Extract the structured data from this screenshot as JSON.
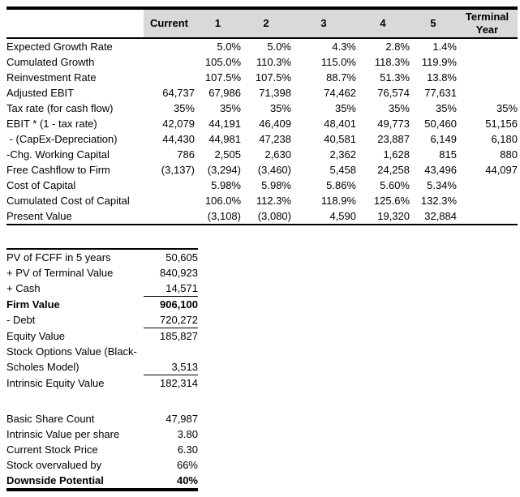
{
  "colors": {
    "header_bg": "#d9d9d9",
    "border": "#000000",
    "text": "#000000",
    "background": "#ffffff"
  },
  "dcf_table": {
    "columns": [
      "",
      "Current",
      "1",
      "2",
      "3",
      "4",
      "5",
      "Terminal Year"
    ],
    "rows": [
      {
        "cells": [
          "Expected Growth Rate",
          "",
          "5.0%",
          "5.0%",
          "4.3%",
          "2.8%",
          "1.4%",
          ""
        ]
      },
      {
        "cells": [
          "Cumulated Growth",
          "",
          "105.0%",
          "110.3%",
          "115.0%",
          "118.3%",
          "119.9%",
          ""
        ]
      },
      {
        "cells": [
          "Reinvestment Rate",
          "",
          "107.5%",
          "107.5%",
          "88.7%",
          "51.3%",
          "13.8%",
          ""
        ]
      },
      {
        "cells": [
          "Adjusted EBIT",
          "64,737",
          "67,986",
          "71,398",
          "74,462",
          "76,574",
          "77,631",
          ""
        ]
      },
      {
        "cells": [
          "Tax rate (for cash flow)",
          "35%",
          "35%",
          "35%",
          "35%",
          "35%",
          "35%",
          "35%"
        ]
      },
      {
        "cells": [
          "EBIT * (1 - tax rate)",
          "42,079",
          "44,191",
          "46,409",
          "48,401",
          "49,773",
          "50,460",
          "51,156"
        ]
      },
      {
        "cells": [
          " - (CapEx-Depreciation)",
          "44,430",
          "44,981",
          "47,238",
          "40,581",
          "23,887",
          "6,149",
          "6,180"
        ]
      },
      {
        "cells": [
          "-Chg. Working Capital",
          "786",
          "2,505",
          "2,630",
          "2,362",
          "1,628",
          "815",
          "880"
        ]
      },
      {
        "cells": [
          "Free Cashflow to Firm",
          "(3,137)",
          "(3,294)",
          "(3,460)",
          "5,458",
          "24,258",
          "43,496",
          "44,097"
        ]
      },
      {
        "cells": [
          "Cost of Capital",
          "",
          "5.98%",
          "5.98%",
          "5.86%",
          "5.60%",
          "5.34%",
          ""
        ]
      },
      {
        "cells": [
          "Cumulated Cost of Capital",
          "",
          "106.0%",
          "112.3%",
          "118.9%",
          "125.6%",
          "132.3%",
          ""
        ]
      },
      {
        "cells": [
          "Present Value",
          "",
          "(3,108)",
          "(3,080)",
          "4,590",
          "19,320",
          "32,884",
          ""
        ]
      }
    ]
  },
  "valuation_summary": {
    "rows": [
      {
        "label": "PV of FCFF in 5 years",
        "value": "50,605",
        "bold": false,
        "underline": false
      },
      {
        "label": "+ PV of Terminal Value",
        "value": "840,923",
        "bold": false,
        "underline": false
      },
      {
        "label": "+ Cash",
        "value": "14,571",
        "bold": false,
        "underline": true
      },
      {
        "label": "Firm Value",
        "value": "906,100",
        "bold": true,
        "underline": false
      },
      {
        "label": "- Debt",
        "value": "720,272",
        "bold": false,
        "underline": true
      },
      {
        "label": "Equity Value",
        "value": "185,827",
        "bold": false,
        "underline": false
      },
      {
        "label": "Stock Options Value (Black-",
        "value": "",
        "bold": false,
        "underline": false
      },
      {
        "label": "Scholes Model)",
        "value": "3,513",
        "bold": false,
        "underline": true
      },
      {
        "label": "Intrinsic Equity Value",
        "value": "182,314",
        "bold": false,
        "underline": false
      }
    ]
  },
  "share_metrics": {
    "rows": [
      {
        "label": "Basic Share Count",
        "value": "47,987",
        "bold": false,
        "underline": false
      },
      {
        "label": "Intrinsic Value per share",
        "value": "3.80",
        "bold": false,
        "underline": false
      },
      {
        "label": "Current Stock Price",
        "value": "6.30",
        "bold": false,
        "underline": false
      },
      {
        "label": "Stock overvalued by",
        "value": "66%",
        "bold": false,
        "underline": false
      },
      {
        "label": "Downside Potential",
        "value": "40%",
        "bold": true,
        "underline": false
      }
    ]
  }
}
